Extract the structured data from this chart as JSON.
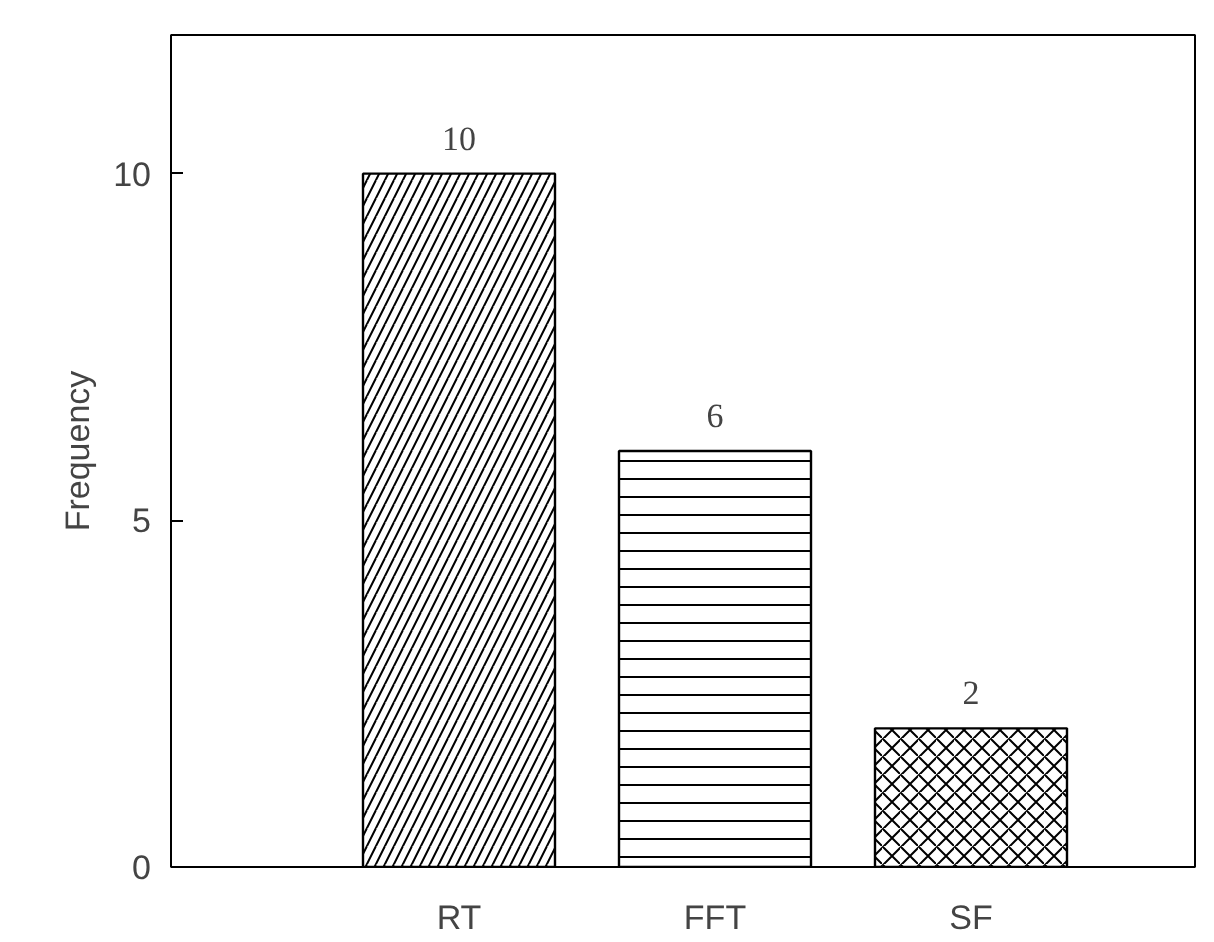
{
  "chart_data": {
    "type": "bar",
    "ylabel": "Frequency",
    "categories": [
      "RT",
      "FFT",
      "SF"
    ],
    "values": [
      10,
      6,
      2
    ],
    "color": "#ffffff",
    "ylim": [
      0,
      12
    ],
    "yticks": [
      0,
      5,
      10
    ],
    "grid": false,
    "data_labels": true
  }
}
